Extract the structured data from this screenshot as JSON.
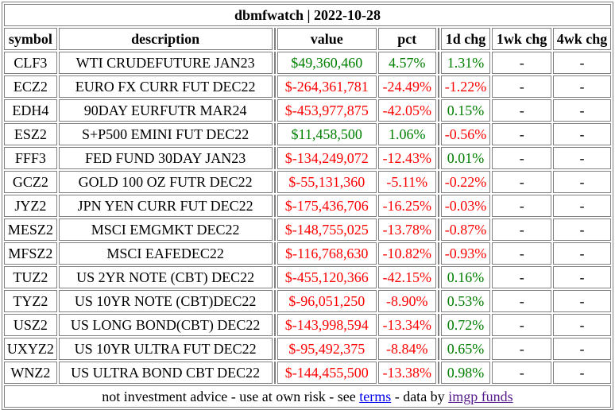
{
  "title": "dbmfwatch | 2022-10-28",
  "headers": {
    "symbol": "symbol",
    "description": "description",
    "value": "value",
    "pct": "pct",
    "chg1d": "1d chg",
    "chg1wk": "1wk chg",
    "chg4wk": "4wk chg"
  },
  "rows": [
    {
      "symbol": "CLF3",
      "description": "WTI CRUDEFUTURE JAN23",
      "value": "$49,360,460",
      "pct": "4.57%",
      "chg1d": "1.31%",
      "chg1wk": "-",
      "chg4wk": "-",
      "value_sign": "pos",
      "chg1d_sign": "pos"
    },
    {
      "symbol": "ECZ2",
      "description": "EURO FX CURR FUT DEC22",
      "value": "$-264,361,781",
      "pct": "-24.49%",
      "chg1d": "-1.22%",
      "chg1wk": "-",
      "chg4wk": "-",
      "value_sign": "neg",
      "chg1d_sign": "neg"
    },
    {
      "symbol": "EDH4",
      "description": "90DAY EURFUTR MAR24",
      "value": "$-453,977,875",
      "pct": "-42.05%",
      "chg1d": "0.15%",
      "chg1wk": "-",
      "chg4wk": "-",
      "value_sign": "neg",
      "chg1d_sign": "pos"
    },
    {
      "symbol": "ESZ2",
      "description": "S+P500 EMINI FUT DEC22",
      "value": "$11,458,500",
      "pct": "1.06%",
      "chg1d": "-0.56%",
      "chg1wk": "-",
      "chg4wk": "-",
      "value_sign": "pos",
      "chg1d_sign": "neg"
    },
    {
      "symbol": "FFF3",
      "description": "FED FUND 30DAY JAN23",
      "value": "$-134,249,072",
      "pct": "-12.43%",
      "chg1d": "0.01%",
      "chg1wk": "-",
      "chg4wk": "-",
      "value_sign": "neg",
      "chg1d_sign": "pos"
    },
    {
      "symbol": "GCZ2",
      "description": "GOLD 100 OZ FUTR DEC22",
      "value": "$-55,131,360",
      "pct": "-5.11%",
      "chg1d": "-0.22%",
      "chg1wk": "-",
      "chg4wk": "-",
      "value_sign": "neg",
      "chg1d_sign": "neg"
    },
    {
      "symbol": "JYZ2",
      "description": "JPN YEN CURR FUT DEC22",
      "value": "$-175,436,706",
      "pct": "-16.25%",
      "chg1d": "-0.03%",
      "chg1wk": "-",
      "chg4wk": "-",
      "value_sign": "neg",
      "chg1d_sign": "neg"
    },
    {
      "symbol": "MESZ2",
      "description": "MSCI EMGMKT DEC22",
      "value": "$-148,755,025",
      "pct": "-13.78%",
      "chg1d": "-0.87%",
      "chg1wk": "-",
      "chg4wk": "-",
      "value_sign": "neg",
      "chg1d_sign": "neg"
    },
    {
      "symbol": "MFSZ2",
      "description": "MSCI EAFEDEC22",
      "value": "$-116,768,630",
      "pct": "-10.82%",
      "chg1d": "-0.93%",
      "chg1wk": "-",
      "chg4wk": "-",
      "value_sign": "neg",
      "chg1d_sign": "neg"
    },
    {
      "symbol": "TUZ2",
      "description": "US 2YR NOTE (CBT) DEC22",
      "value": "$-455,120,366",
      "pct": "-42.15%",
      "chg1d": "0.16%",
      "chg1wk": "-",
      "chg4wk": "-",
      "value_sign": "neg",
      "chg1d_sign": "pos"
    },
    {
      "symbol": "TYZ2",
      "description": "US 10YR NOTE (CBT)DEC22",
      "value": "$-96,051,250",
      "pct": "-8.90%",
      "chg1d": "0.53%",
      "chg1wk": "-",
      "chg4wk": "-",
      "value_sign": "neg",
      "chg1d_sign": "pos"
    },
    {
      "symbol": "USZ2",
      "description": "US LONG BOND(CBT) DEC22",
      "value": "$-143,998,594",
      "pct": "-13.34%",
      "chg1d": "0.72%",
      "chg1wk": "-",
      "chg4wk": "-",
      "value_sign": "neg",
      "chg1d_sign": "pos"
    },
    {
      "symbol": "UXYZ2",
      "description": "US 10YR ULTRA FUT DEC22",
      "value": "$-95,492,375",
      "pct": "-8.84%",
      "chg1d": "0.65%",
      "chg1wk": "-",
      "chg4wk": "-",
      "value_sign": "neg",
      "chg1d_sign": "pos"
    },
    {
      "symbol": "WNZ2",
      "description": "US ULTRA BOND CBT DEC22",
      "value": "$-144,455,500",
      "pct": "-13.38%",
      "chg1d": "0.98%",
      "chg1wk": "-",
      "chg4wk": "-",
      "value_sign": "neg",
      "chg1d_sign": "pos"
    }
  ],
  "footer": {
    "prefix": "not investment advice - use at own risk - see ",
    "terms_link": "terms",
    "middle": " - data by ",
    "funds_link": "imgp funds"
  },
  "colors": {
    "positive": "#008000",
    "negative": "#ff0000",
    "border": "#808080",
    "link": "#0000ee",
    "visited_link": "#551a8b"
  }
}
